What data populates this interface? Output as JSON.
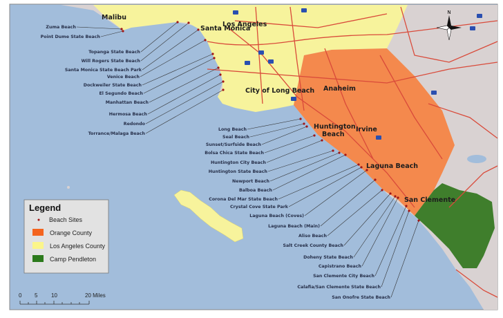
{
  "map": {
    "colors": {
      "ocean": "#a2bddb",
      "land": "#d9d2d2",
      "los_angeles_county": "#f7f39c",
      "orange_county": "#f4894d",
      "camp_pendleton": "#3f7e2c",
      "beach_site": "#a01515",
      "road": "#d94a3a"
    },
    "cities": [
      {
        "name": "Malibu"
      },
      {
        "name": "Santa Monica"
      },
      {
        "name": "Los Angeles"
      },
      {
        "name": "City of Long Beach"
      },
      {
        "name": "Anaheim"
      },
      {
        "name": "Huntington"
      },
      {
        "name": "Beach"
      },
      {
        "name": "Irvine"
      },
      {
        "name": "Laguna Beach"
      },
      {
        "name": "San Clemente"
      }
    ],
    "beaches": [
      "Zuma Beach",
      "Point Dume State Beach",
      "Topanga State Beach",
      "Will Rogers State Beach",
      "Santa Monica State Beach Park",
      "Venice Beach",
      "Dockweiler State Beach",
      "El Segundo Beach",
      "Manhattan Beach",
      "Hermosa Beach",
      "Redondo",
      "Torrance/Malaga Beach",
      "Long Beach",
      "Seal Beach",
      "Sunset/Surfside Beach",
      "Bolsa Chica State Beach",
      "Huntington City Beach",
      "Huntington State Beach",
      "Newport Beach",
      "Balboa Beach",
      "Corona Del Mar State Beach",
      "Crystal Cove State Park",
      "Laguna Beach (Coves)",
      "Laguna Beach (Main)",
      "Aliso Beach",
      "Salt Creek County Beach",
      "Doheny State Beach",
      "Capistrano Beach",
      "San Clemente City Beach",
      "Calafia/San Clemente State Beach",
      "San Onofre State Beach"
    ],
    "north_arrow": {
      "label": "N",
      "icon": "compass-rose-icon"
    },
    "legend": {
      "title": "Legend",
      "items": [
        {
          "label": "Beach Sites",
          "symbol": "dot",
          "color": "#a01515"
        },
        {
          "label": "Orange County",
          "symbol": "swatch",
          "color": "#f4641e"
        },
        {
          "label": "Los Angeles County",
          "symbol": "swatch",
          "color": "#fbf58a"
        },
        {
          "label": "Camp Pendleton",
          "symbol": "swatch",
          "color": "#2c7a1c"
        }
      ]
    },
    "scale_bar": {
      "ticks": [
        "0",
        "5",
        "10",
        "20 Miles"
      ]
    }
  }
}
